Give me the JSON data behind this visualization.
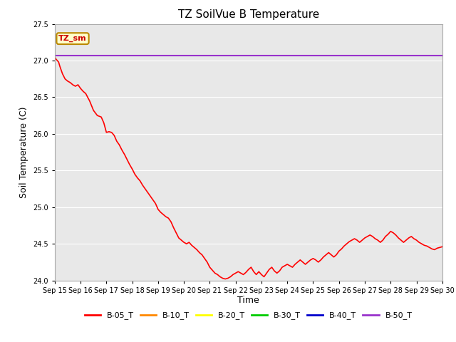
{
  "title": "TZ SoilVue B Temperature",
  "ylabel": "Soil Temperature (C)",
  "xlabel": "Time",
  "ylim": [
    24.0,
    27.5
  ],
  "yticks": [
    24.0,
    24.5,
    25.0,
    25.5,
    26.0,
    26.5,
    27.0,
    27.5
  ],
  "xtick_labels": [
    "Sep 15",
    "Sep 16",
    "Sep 17",
    "Sep 18",
    "Sep 19",
    "Sep 20",
    "Sep 21",
    "Sep 22",
    "Sep 23",
    "Sep 24",
    "Sep 25",
    "Sep 26",
    "Sep 27",
    "Sep 28",
    "Sep 29",
    "Sep 30"
  ],
  "annotation_text": "TZ_sm",
  "annotation_box_color": "#ffffcc",
  "annotation_border_color": "#bb8800",
  "annotation_text_color": "#cc0000",
  "bg_color": "#e8e8e8",
  "fig_color": "#ffffff",
  "series_colors": {
    "B-05_T": "#ff0000",
    "B-10_T": "#ff8800",
    "B-20_T": "#ffff00",
    "B-30_T": "#00cc00",
    "B-40_T": "#0000cc",
    "B-50_T": "#9933cc"
  },
  "b05_x": [
    0,
    0.05,
    0.1,
    0.15,
    0.2,
    0.3,
    0.4,
    0.5,
    0.6,
    0.7,
    0.8,
    0.9,
    1.0,
    1.1,
    1.2,
    1.35,
    1.5,
    1.65,
    1.8,
    1.9,
    2.0,
    2.1,
    2.2,
    2.3,
    2.4,
    2.5,
    2.6,
    2.7,
    2.8,
    2.9,
    3.0,
    3.1,
    3.2,
    3.3,
    3.4,
    3.5,
    3.6,
    3.7,
    3.8,
    3.9,
    4.0,
    4.1,
    4.2,
    4.3,
    4.4,
    4.5,
    4.6,
    4.7,
    4.8,
    4.9,
    5.0,
    5.1,
    5.2,
    5.3,
    5.4,
    5.5,
    5.6,
    5.7,
    5.8,
    5.9,
    6.0,
    6.1,
    6.2,
    6.3,
    6.4,
    6.5,
    6.6,
    6.7,
    6.8,
    6.9,
    7.0,
    7.1,
    7.2,
    7.3,
    7.4,
    7.5,
    7.6,
    7.7,
    7.8,
    7.9,
    8.0,
    8.1,
    8.2,
    8.3,
    8.4,
    8.5,
    8.6,
    8.7,
    8.8,
    8.9,
    9.0,
    9.1,
    9.2,
    9.3,
    9.4,
    9.5,
    9.6,
    9.7,
    9.8,
    9.9,
    10.0,
    10.1,
    10.2,
    10.3,
    10.4,
    10.5,
    10.6,
    10.7,
    10.8,
    10.9,
    11.0,
    11.1,
    11.2,
    11.3,
    11.4,
    11.5,
    11.6,
    11.7,
    11.8,
    11.9,
    12.0,
    12.1,
    12.2,
    12.3,
    12.4,
    12.5,
    12.6,
    12.7,
    12.8,
    12.9,
    13.0,
    13.1,
    13.2,
    13.3,
    13.4,
    13.5,
    13.6,
    13.7,
    13.8,
    13.9,
    14.0,
    14.1,
    14.2,
    14.3,
    14.4,
    14.5,
    14.6,
    14.7,
    14.8,
    14.9,
    15.0
  ],
  "b05_y": [
    27.05,
    27.02,
    27.0,
    26.98,
    26.92,
    26.82,
    26.75,
    26.72,
    26.7,
    26.67,
    26.65,
    26.67,
    26.62,
    26.58,
    26.55,
    26.45,
    26.32,
    26.25,
    26.23,
    26.15,
    26.02,
    26.03,
    26.02,
    25.98,
    25.9,
    25.85,
    25.78,
    25.72,
    25.65,
    25.58,
    25.52,
    25.45,
    25.4,
    25.36,
    25.3,
    25.25,
    25.2,
    25.15,
    25.1,
    25.05,
    24.97,
    24.93,
    24.9,
    24.87,
    24.85,
    24.8,
    24.72,
    24.65,
    24.58,
    24.55,
    24.52,
    24.5,
    24.52,
    24.48,
    24.45,
    24.42,
    24.38,
    24.35,
    24.3,
    24.25,
    24.18,
    24.14,
    24.1,
    24.08,
    24.05,
    24.03,
    24.02,
    24.03,
    24.05,
    24.08,
    24.1,
    24.12,
    24.1,
    24.08,
    24.11,
    24.15,
    24.18,
    24.12,
    24.08,
    24.12,
    24.08,
    24.05,
    24.1,
    24.15,
    24.18,
    24.13,
    24.1,
    24.13,
    24.18,
    24.2,
    24.22,
    24.2,
    24.18,
    24.22,
    24.25,
    24.28,
    24.25,
    24.22,
    24.25,
    24.28,
    24.3,
    24.28,
    24.25,
    24.28,
    24.32,
    24.35,
    24.38,
    24.35,
    24.32,
    24.35,
    24.4,
    24.43,
    24.47,
    24.5,
    24.53,
    24.55,
    24.57,
    24.55,
    24.52,
    24.55,
    24.58,
    24.6,
    24.62,
    24.6,
    24.57,
    24.55,
    24.52,
    24.55,
    24.6,
    24.63,
    24.67,
    24.65,
    24.62,
    24.58,
    24.55,
    24.52,
    24.55,
    24.58,
    24.6,
    24.57,
    24.55,
    24.52,
    24.5,
    24.48,
    24.47,
    24.45,
    24.43,
    24.42,
    24.44,
    24.45,
    24.46
  ],
  "b50_value": 27.07
}
